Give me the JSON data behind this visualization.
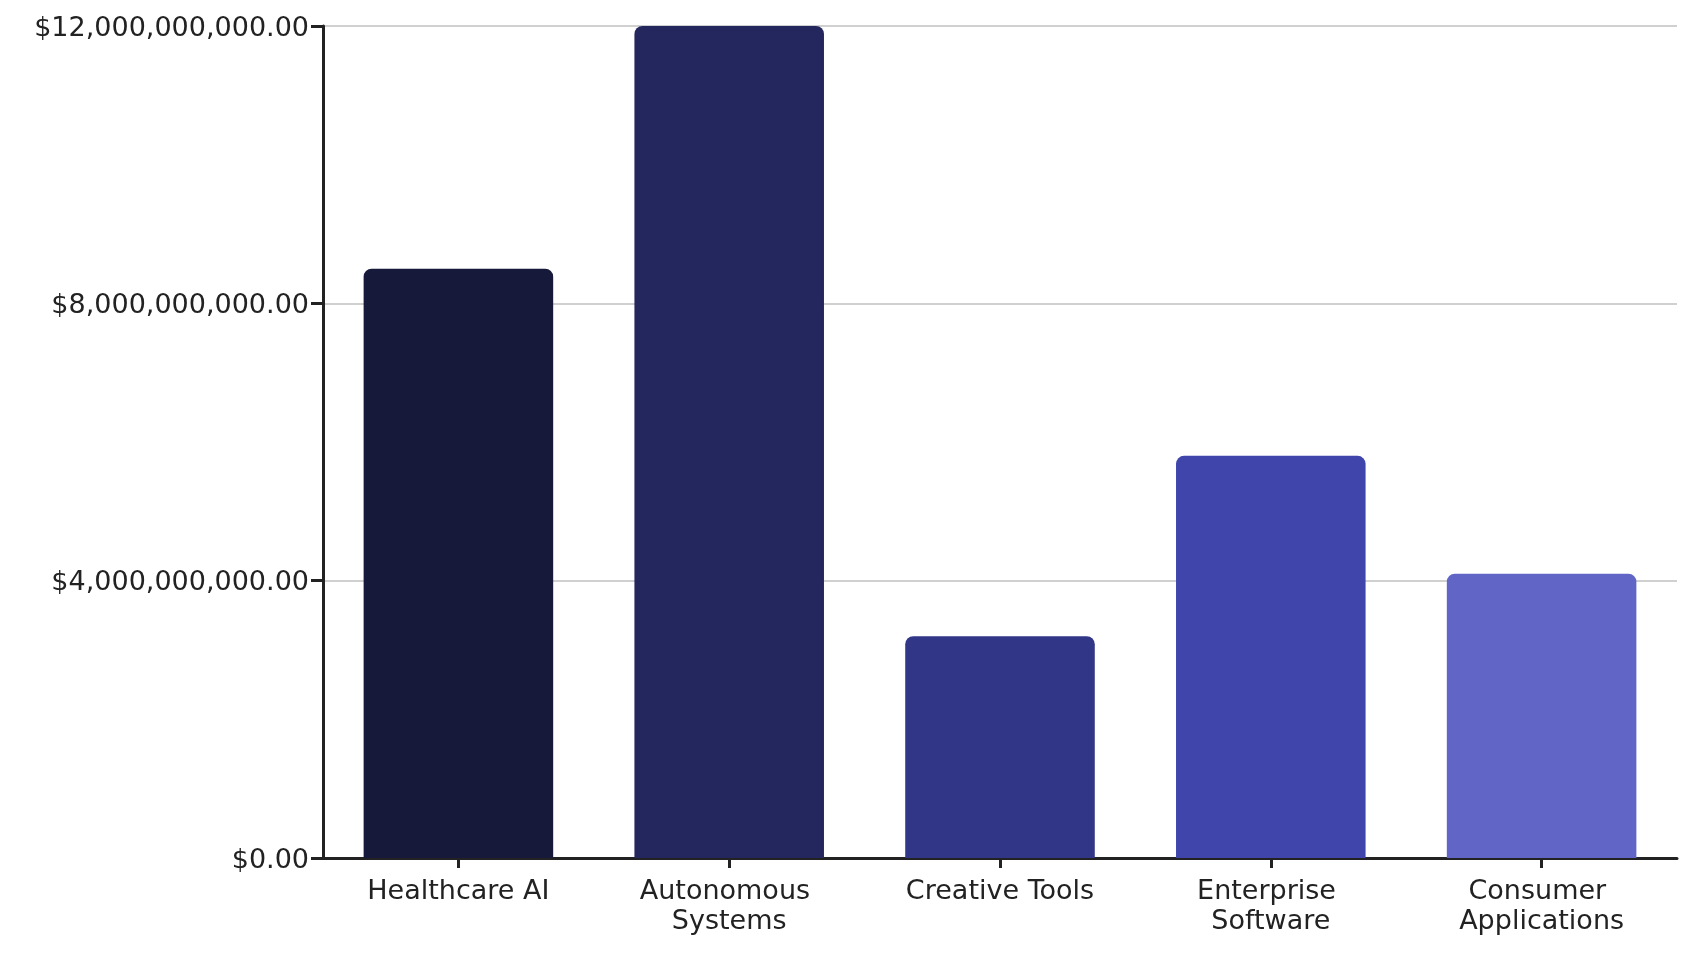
{
  "chart_data": {
    "type": "bar",
    "categories": [
      "Healthcare AI",
      "Autonomous Systems",
      "Creative Tools",
      "Enterprise Software",
      "Consumer Applications"
    ],
    "values": [
      8500000000,
      12000000000,
      3200000000,
      5800000000,
      4100000000
    ],
    "colors": [
      "#161939",
      "#23275d",
      "#323686",
      "#3f45ab",
      "#6166c6"
    ],
    "ylim": [
      0,
      12000000000
    ],
    "yticks": [
      {
        "value": 0,
        "label": "$0.00"
      },
      {
        "value": 4000000000,
        "label": "$4,000,000,000.00"
      },
      {
        "value": 8000000000,
        "label": "$8,000,000,000.00"
      },
      {
        "value": 12000000000,
        "label": "$12,000,000,000.00"
      }
    ],
    "grid": "y"
  }
}
